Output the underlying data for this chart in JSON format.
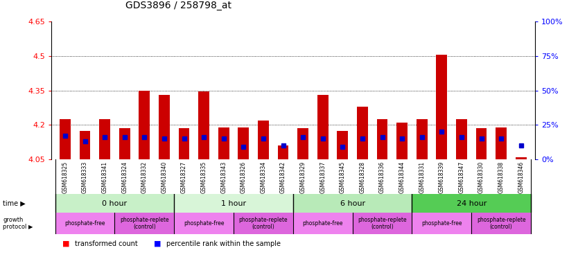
{
  "title": "GDS3896 / 258798_at",
  "samples": [
    "GSM618325",
    "GSM618333",
    "GSM618341",
    "GSM618324",
    "GSM618332",
    "GSM618340",
    "GSM618327",
    "GSM618335",
    "GSM618343",
    "GSM618326",
    "GSM618334",
    "GSM618342",
    "GSM618329",
    "GSM618337",
    "GSM618345",
    "GSM618328",
    "GSM618336",
    "GSM618344",
    "GSM618331",
    "GSM618339",
    "GSM618347",
    "GSM618330",
    "GSM618338",
    "GSM618346"
  ],
  "transformed_count": [
    4.225,
    4.175,
    4.225,
    4.185,
    4.35,
    4.33,
    4.185,
    4.345,
    4.19,
    4.19,
    4.22,
    4.11,
    4.185,
    4.33,
    4.175,
    4.28,
    4.225,
    4.21,
    4.225,
    4.505,
    4.225,
    4.185,
    4.19,
    4.06
  ],
  "percentile_rank": [
    17,
    13,
    16,
    16,
    16,
    15,
    15,
    16,
    15,
    9,
    15,
    10,
    16,
    15,
    9,
    15,
    16,
    15,
    16,
    20,
    16,
    15,
    15,
    10
  ],
  "ymin": 4.05,
  "ymax": 4.65,
  "yticks": [
    4.05,
    4.2,
    4.35,
    4.5,
    4.65
  ],
  "right_yticks": [
    0,
    25,
    50,
    75,
    100
  ],
  "time_groups": [
    {
      "label": "0 hour",
      "start": 0,
      "end": 6,
      "color": "#c8f0c8"
    },
    {
      "label": "1 hour",
      "start": 6,
      "end": 12,
      "color": "#d8f5d8"
    },
    {
      "label": "6 hour",
      "start": 12,
      "end": 18,
      "color": "#b8eab8"
    },
    {
      "label": "24 hour",
      "start": 18,
      "end": 24,
      "color": "#55cc55"
    }
  ],
  "protocol_groups": [
    {
      "label": "phosphate-free",
      "start": 0,
      "end": 3,
      "color": "#ee82ee"
    },
    {
      "label": "phosphate-replete\n(control)",
      "start": 3,
      "end": 6,
      "color": "#dd66dd"
    },
    {
      "label": "phosphate-free",
      "start": 6,
      "end": 9,
      "color": "#ee82ee"
    },
    {
      "label": "phosphate-replete\n(control)",
      "start": 9,
      "end": 12,
      "color": "#dd66dd"
    },
    {
      "label": "phosphate-free",
      "start": 12,
      "end": 15,
      "color": "#ee82ee"
    },
    {
      "label": "phosphate-replete\n(control)",
      "start": 15,
      "end": 18,
      "color": "#dd66dd"
    },
    {
      "label": "phosphate-free",
      "start": 18,
      "end": 21,
      "color": "#ee82ee"
    },
    {
      "label": "phosphate-replete\n(control)",
      "start": 21,
      "end": 24,
      "color": "#dd66dd"
    }
  ],
  "bar_color": "#cc0000",
  "dot_color": "#0000cc",
  "base_value": 4.05,
  "bar_width": 0.55,
  "bg_color": "#ffffff",
  "xtick_bg": "#d8d8d8"
}
